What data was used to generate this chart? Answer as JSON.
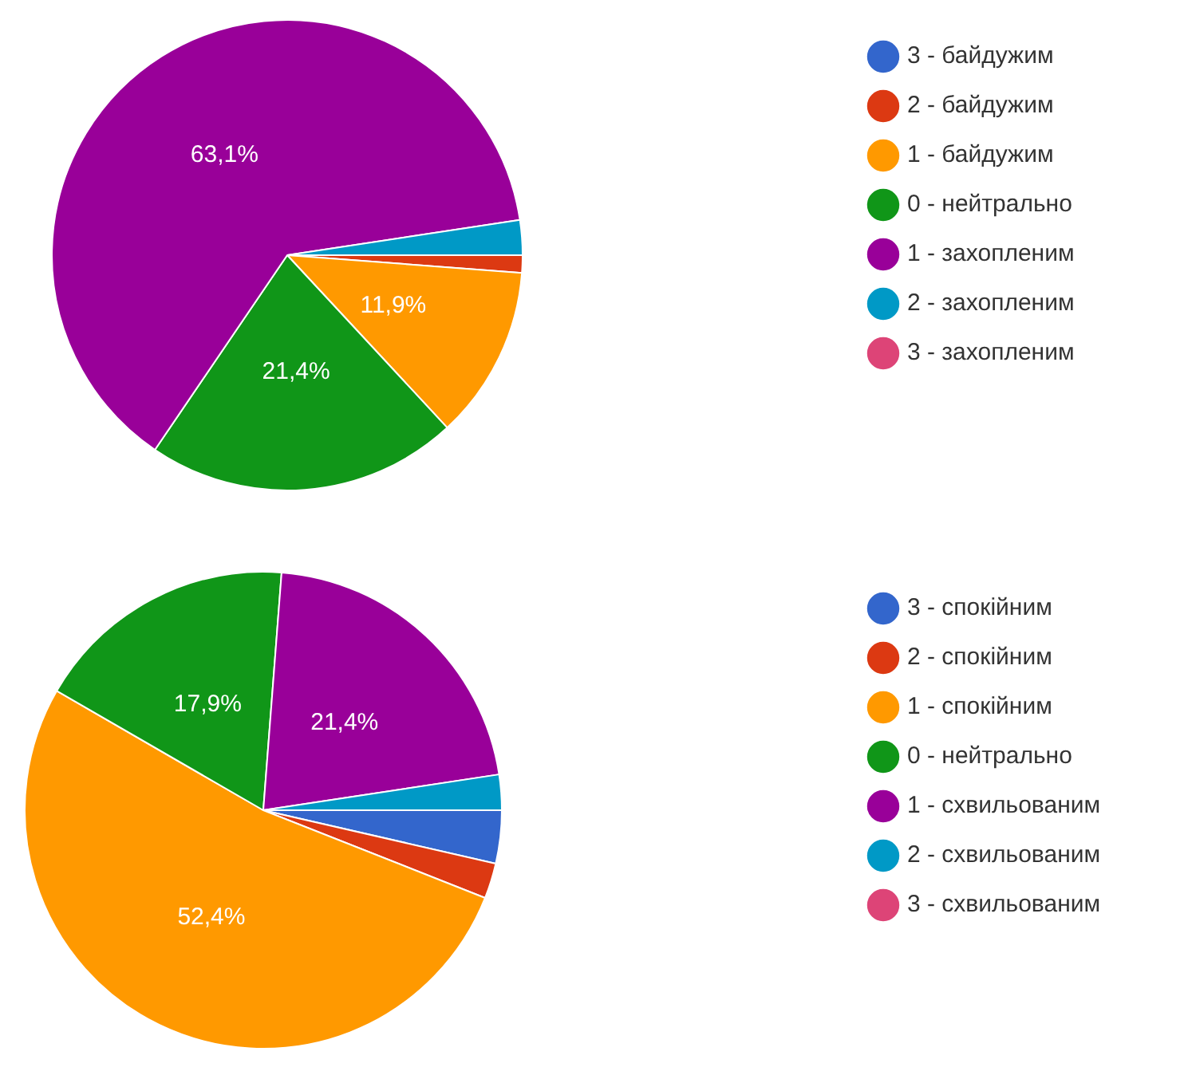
{
  "chart_data": [
    {
      "type": "pie",
      "categories": [
        "3 - байдужим",
        "2 - байдужим",
        "1 - байдужим",
        "0 - нейтрально",
        "1 - захопленим",
        "2 - захопленим",
        "3 - захопленим"
      ],
      "values": [
        0,
        1.2,
        11.9,
        21.4,
        63.1,
        2.4,
        0
      ],
      "colors": [
        "#3366cc",
        "#dc3912",
        "#ff9900",
        "#109618",
        "#990099",
        "#0099c6",
        "#dd4477"
      ],
      "value_labels": [
        null,
        null,
        "11,9%",
        "21,4%",
        "63,1%",
        null,
        null
      ],
      "legend": "top right"
    },
    {
      "type": "pie",
      "categories": [
        "3 - спокійним",
        "2 - спокійним",
        "1 - спокійним",
        "0 - нейтрально",
        "1 - схвильованим",
        "2 - схвильованим",
        "3 - схвильованим"
      ],
      "values": [
        3.6,
        2.4,
        52.4,
        17.9,
        21.4,
        2.4,
        0
      ],
      "colors": [
        "#3366cc",
        "#dc3912",
        "#ff9900",
        "#109618",
        "#990099",
        "#0099c6",
        "#dd4477"
      ],
      "value_labels": [
        null,
        null,
        "52,4%",
        "17,9%",
        "21,4%",
        null,
        null
      ],
      "legend": "top right"
    }
  ]
}
